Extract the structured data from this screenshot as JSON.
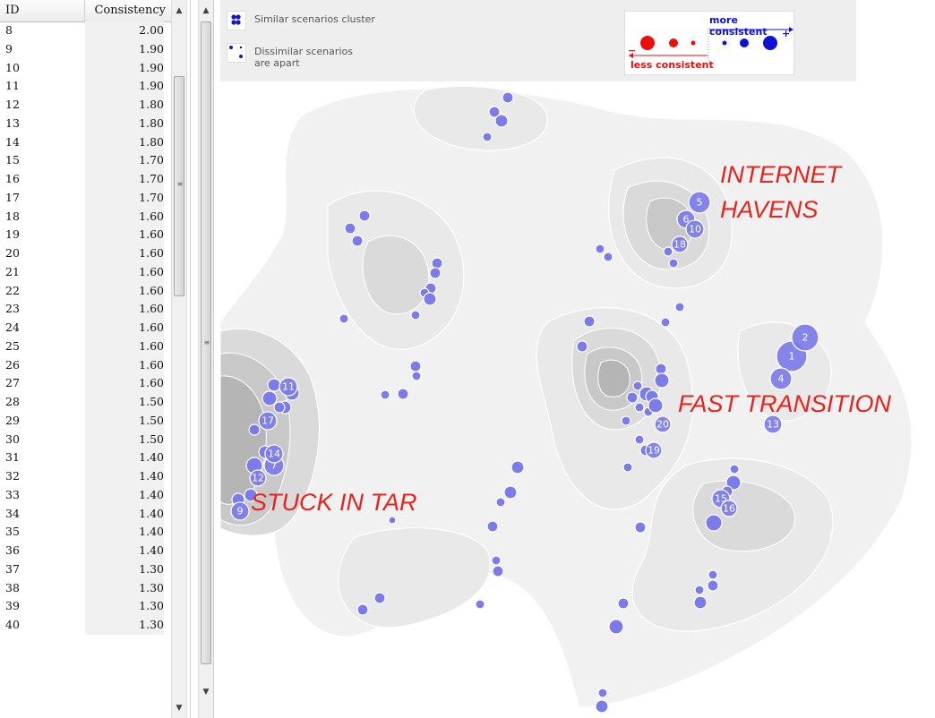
{
  "table": {
    "col_id": "ID",
    "col_consistency": "Consistency",
    "rows": [
      {
        "id": "8",
        "value": "2.00"
      },
      {
        "id": "9",
        "value": "1.90"
      },
      {
        "id": "10",
        "value": "1.90"
      },
      {
        "id": "11",
        "value": "1.90"
      },
      {
        "id": "12",
        "value": "1.80"
      },
      {
        "id": "13",
        "value": "1.80"
      },
      {
        "id": "14",
        "value": "1.80"
      },
      {
        "id": "15",
        "value": "1.70"
      },
      {
        "id": "16",
        "value": "1.70"
      },
      {
        "id": "17",
        "value": "1.70"
      },
      {
        "id": "18",
        "value": "1.60"
      },
      {
        "id": "19",
        "value": "1.60"
      },
      {
        "id": "20",
        "value": "1.60"
      },
      {
        "id": "21",
        "value": "1.60"
      },
      {
        "id": "22",
        "value": "1.60"
      },
      {
        "id": "23",
        "value": "1.60"
      },
      {
        "id": "24",
        "value": "1.60"
      },
      {
        "id": "25",
        "value": "1.60"
      },
      {
        "id": "26",
        "value": "1.60"
      },
      {
        "id": "27",
        "value": "1.60"
      },
      {
        "id": "28",
        "value": "1.50"
      },
      {
        "id": "29",
        "value": "1.50"
      },
      {
        "id": "30",
        "value": "1.50"
      },
      {
        "id": "31",
        "value": "1.40"
      },
      {
        "id": "32",
        "value": "1.40"
      },
      {
        "id": "33",
        "value": "1.40"
      },
      {
        "id": "34",
        "value": "1.40"
      },
      {
        "id": "35",
        "value": "1.40"
      },
      {
        "id": "36",
        "value": "1.40"
      },
      {
        "id": "37",
        "value": "1.30"
      },
      {
        "id": "38",
        "value": "1.30"
      },
      {
        "id": "39",
        "value": "1.30"
      },
      {
        "id": "40",
        "value": "1.30"
      }
    ]
  },
  "legend": {
    "cluster_text": "Similar scenarios cluster",
    "apart_text_line1": "Dissimilar scenarios",
    "apart_text_line2": "are apart",
    "more_consistent": "more consistent",
    "less_consistent": "less consistent",
    "plus_sign": "+",
    "minus_sign": "−"
  },
  "cluster_labels": {
    "internet_havens_line1": "INTERNET",
    "internet_havens_line2": "HAVENS",
    "fast_transition": "FAST TRANSITION",
    "stuck_in_tar": "STUCK IN TAR"
  },
  "colors": {
    "node_fill": "#7b7bea",
    "node_stroke": "#ffffff",
    "label_red": "#e8231d",
    "legend_blue": "#1010d8",
    "legend_red": "#ee0d0d"
  },
  "nodes": [
    {
      "label": "1",
      "r": 17
    },
    {
      "label": "2",
      "r": 15
    },
    {
      "label": "4",
      "r": 12
    },
    {
      "label": "5",
      "r": 12
    },
    {
      "label": "6",
      "r": 10
    },
    {
      "label": "7",
      "r": 11
    },
    {
      "label": "9",
      "r": 10
    },
    {
      "label": "10",
      "r": 10
    },
    {
      "label": "11",
      "r": 10
    },
    {
      "label": "12",
      "r": 9
    },
    {
      "label": "13",
      "r": 10
    },
    {
      "label": "14",
      "r": 10
    },
    {
      "label": "15",
      "r": 10
    },
    {
      "label": "16",
      "r": 9
    },
    {
      "label": "17",
      "r": 10
    },
    {
      "label": "18",
      "r": 9
    },
    {
      "label": "19",
      "r": 9
    },
    {
      "label": "20",
      "r": 9
    }
  ]
}
